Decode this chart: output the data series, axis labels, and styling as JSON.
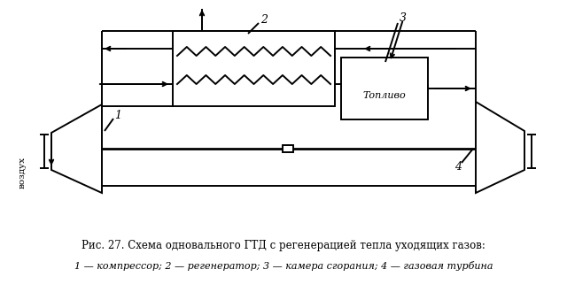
{
  "caption_line1": "Рис. 27. Схема одновального ГТД с регенерацией тепла уходящих газов:",
  "caption_line2": "1 — компрессор; 2 — регенератор; 3 — камера сгорания; 4 — газовая турбина",
  "bg_color": "#ffffff",
  "lw": 1.4,
  "fig_width": 6.4,
  "fig_height": 3.39,
  "dpi": 100
}
